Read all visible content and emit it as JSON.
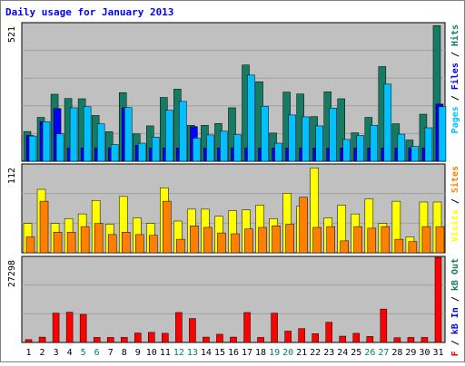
{
  "chart_data": {
    "type": "bar",
    "title": "Daily usage for January 2013",
    "categories": [
      "1",
      "2",
      "3",
      "4",
      "5",
      "6",
      "7",
      "8",
      "9",
      "10",
      "11",
      "12",
      "13",
      "14",
      "15",
      "16",
      "17",
      "18",
      "19",
      "20",
      "21",
      "22",
      "23",
      "24",
      "25",
      "26",
      "27",
      "28",
      "29",
      "30",
      "31"
    ],
    "weekend_days": [
      "5",
      "6",
      "12",
      "13",
      "19",
      "20",
      "26",
      "27"
    ],
    "panels": [
      {
        "id": "pages-files-hits",
        "max_label": "521",
        "ylim": [
          0,
          521
        ],
        "series": [
          {
            "name": "Hits",
            "color": "#157b63",
            "values": [
              112,
              165,
              252,
              236,
              235,
              172,
              111,
              258,
              103,
              133,
              240,
              271,
              135,
              135,
              142,
              201,
              362,
              299,
              106,
              260,
              253,
              168,
              261,
              235,
              107,
              165,
              356,
              141,
              80,
              177,
              510
            ]
          },
          {
            "name": "Files",
            "color": "#0000ff",
            "values": [
              97,
              149,
              198,
              50,
              50,
              50,
              50,
              201,
              60,
              50,
              50,
              50,
              130,
              50,
              50,
              50,
              50,
              50,
              50,
              50,
              50,
              50,
              50,
              50,
              50,
              50,
              50,
              50,
              50,
              50,
              215
            ]
          },
          {
            "name": "Pages",
            "color": "#00c0ff",
            "values": [
              95,
              149,
              103,
              201,
              205,
              141,
              63,
              202,
              68,
              91,
              192,
              225,
              87,
              99,
              113,
              100,
              324,
              207,
              68,
              174,
              167,
              133,
              200,
              82,
              97,
              135,
              290,
              102,
              56,
              126,
              205
            ]
          }
        ],
        "axis_label": [
          {
            "text": "Pages",
            "color": "#00c0ff"
          },
          {
            "text": " / ",
            "color": "#000000"
          },
          {
            "text": "Files",
            "color": "#0000ff"
          },
          {
            "text": " / ",
            "color": "#000000"
          },
          {
            "text": "Hits",
            "color": "#157b63"
          }
        ]
      },
      {
        "id": "visits-sites",
        "max_label": "112",
        "ylim": [
          0,
          112
        ],
        "series": [
          {
            "name": "Visits",
            "color": "#ffff00",
            "values": [
              37,
              80,
              37,
              43,
              49,
              66,
              36,
              71,
              44,
              37,
              82,
              40,
              55,
              55,
              46,
              53,
              54,
              60,
              43,
              75,
              59,
              107,
              44,
              60,
              49,
              68,
              37,
              65,
              20,
              64,
              64
            ]
          },
          {
            "name": "Sites",
            "color": "#ff8000",
            "values": [
              20,
              65,
              26,
              26,
              33,
              37,
              23,
              26,
              23,
              22,
              65,
              17,
              34,
              32,
              25,
              24,
              30,
              32,
              34,
              36,
              70,
              32,
              33,
              15,
              33,
              31,
              33,
              17,
              14,
              33,
              33
            ]
          }
        ],
        "axis_label": [
          {
            "text": "Visits",
            "color": "#ffff00"
          },
          {
            "text": " / ",
            "color": "#000000"
          },
          {
            "text": "Sites",
            "color": "#ff8000"
          }
        ]
      },
      {
        "id": "kbf-kbin-kbout",
        "max_label": "27298",
        "ylim": [
          0,
          27298
        ],
        "series": [
          {
            "name": "kB F",
            "color": "#ff0000",
            "values": [
              900,
              1700,
              9300,
              9600,
              8900,
              1600,
              1600,
              1600,
              3000,
              3200,
              2900,
              9500,
              7600,
              1700,
              2600,
              1700,
              9500,
              1600,
              9300,
              3600,
              4400,
              2800,
              6400,
              2000,
              2900,
              1900,
              10600,
              1500,
              1600,
              1600,
              27000
            ]
          }
        ],
        "axis_label": [
          {
            "text": "kB F",
            "color": "#ff0000"
          },
          {
            "text": " / ",
            "color": "#000000"
          },
          {
            "text": "kB In",
            "color": "#0000ff"
          },
          {
            "text": " / ",
            "color": "#000000"
          },
          {
            "text": "kB Out",
            "color": "#157b63"
          }
        ]
      }
    ],
    "colors": {
      "title": "#0000ff",
      "plot_bg": "#c0c0c0",
      "frame_bg": "#ffffff",
      "weekday_label": "#000000",
      "weekend_label": "#00805c"
    }
  }
}
